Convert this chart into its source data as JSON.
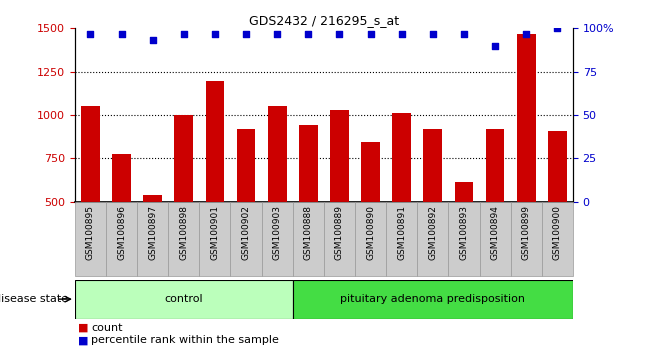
{
  "title": "GDS2432 / 216295_s_at",
  "samples": [
    "GSM100895",
    "GSM100896",
    "GSM100897",
    "GSM100898",
    "GSM100901",
    "GSM100902",
    "GSM100903",
    "GSM100888",
    "GSM100889",
    "GSM100890",
    "GSM100891",
    "GSM100892",
    "GSM100893",
    "GSM100894",
    "GSM100899",
    "GSM100900"
  ],
  "counts": [
    1055,
    775,
    540,
    1000,
    1195,
    920,
    1050,
    940,
    1030,
    845,
    1010,
    920,
    615,
    920,
    1470,
    910
  ],
  "percentiles": [
    97,
    97,
    93,
    97,
    97,
    97,
    97,
    97,
    97,
    97,
    97,
    97,
    97,
    90,
    97,
    100
  ],
  "groups": [
    {
      "label": "control",
      "start": 0,
      "end": 7,
      "color": "#bbffbb"
    },
    {
      "label": "pituitary adenoma predisposition",
      "start": 7,
      "end": 16,
      "color": "#44dd44"
    }
  ],
  "bar_color": "#cc0000",
  "dot_color": "#0000cc",
  "ylim_left": [
    500,
    1500
  ],
  "ylim_right": [
    0,
    100
  ],
  "yticks_left": [
    500,
    750,
    1000,
    1250,
    1500
  ],
  "yticks_right": [
    0,
    25,
    50,
    75,
    100
  ],
  "right_tick_labels": [
    "0",
    "25",
    "50",
    "75",
    "100%"
  ],
  "grid_vals": [
    750,
    1000,
    1250
  ],
  "label_bg_color": "#cccccc",
  "label_border_color": "#999999",
  "disease_state_label": "disease state",
  "legend_count_label": "count",
  "legend_percentile_label": "percentile rank within the sample"
}
